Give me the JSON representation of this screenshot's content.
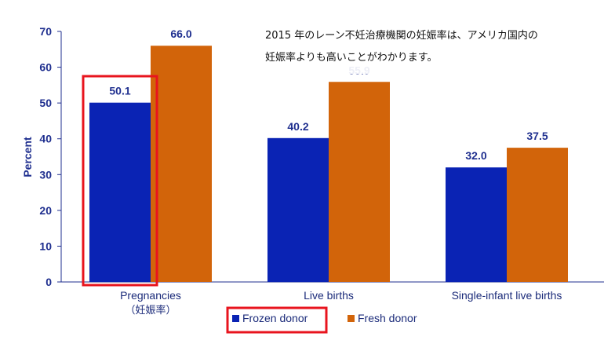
{
  "chart_data": {
    "type": "bar",
    "ylabel": "Percent",
    "ylim": [
      0,
      70
    ],
    "yticks": [
      0,
      10,
      20,
      30,
      40,
      50,
      60,
      70
    ],
    "categories": [
      "Pregnancies",
      "Live births",
      "Single-infant live births"
    ],
    "category_sublabels": [
      "（妊娠率）",
      "",
      ""
    ],
    "series": [
      {
        "name": "Frozen donor",
        "color": "#0a23b4",
        "values": [
          50.1,
          40.2,
          32.0
        ],
        "labels": [
          "50.1",
          "40.2",
          "32.0"
        ]
      },
      {
        "name": "Fresh donor",
        "color": "#d2640a",
        "values": [
          66.0,
          55.9,
          37.5
        ],
        "labels": [
          "66.0",
          "55.9",
          "37.5"
        ]
      }
    ],
    "legend_position": "bottom-center",
    "annotation": {
      "line1": "2015 年のレーン不妊治療機関の妊娠率は、アメリカ国内の",
      "line2": "妊娠率よりも高いことがわかります。"
    },
    "highlight_color": "#e8141e"
  }
}
